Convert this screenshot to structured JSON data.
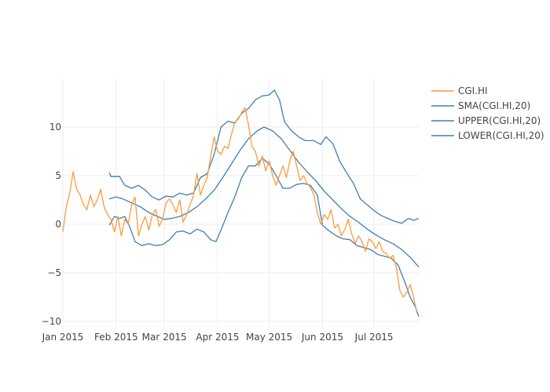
{
  "colors": {
    "orange": "#ff9a3d",
    "blue": "#3f7fb5",
    "grid": "#eceef2",
    "text": "#444444"
  },
  "chart_data": {
    "type": "line",
    "title": "",
    "xlabel": "",
    "ylabel": "",
    "x_range": [
      "2015-01-01",
      "2015-07-27"
    ],
    "ylim": [
      -10.5,
      15
    ],
    "grid": true,
    "legend_position": "top-right",
    "x_ticks": [
      {
        "date": "2015-01-01",
        "label": "Jan 2015"
      },
      {
        "date": "2015-02-01",
        "label": "Feb 2015"
      },
      {
        "date": "2015-03-01",
        "label": "Mar 2015"
      },
      {
        "date": "2015-04-01",
        "label": "Apr 2015"
      },
      {
        "date": "2015-05-01",
        "label": "May 2015"
      },
      {
        "date": "2015-06-01",
        "label": "Jun 2015"
      },
      {
        "date": "2015-07-01",
        "label": "Jul 2015"
      }
    ],
    "y_ticks": [
      {
        "value": 10,
        "label": "10"
      },
      {
        "value": 5,
        "label": "5"
      },
      {
        "value": 0,
        "label": "0"
      },
      {
        "value": -5,
        "label": "−5"
      },
      {
        "value": -10,
        "label": "−10"
      }
    ],
    "series": [
      {
        "name": "CGI.HI",
        "color": "#ff9a3d",
        "points": [
          [
            "2015-01-01",
            -0.8
          ],
          [
            "2015-01-03",
            1.8
          ],
          [
            "2015-01-05",
            3.2
          ],
          [
            "2015-01-07",
            5.4
          ],
          [
            "2015-01-09",
            3.6
          ],
          [
            "2015-01-11",
            3.0
          ],
          [
            "2015-01-13",
            2.0
          ],
          [
            "2015-01-15",
            1.5
          ],
          [
            "2015-01-17",
            3.0
          ],
          [
            "2015-01-19",
            1.8
          ],
          [
            "2015-01-21",
            2.5
          ],
          [
            "2015-01-23",
            3.6
          ],
          [
            "2015-01-25",
            1.8
          ],
          [
            "2015-01-27",
            1.0
          ],
          [
            "2015-01-29",
            0.5
          ],
          [
            "2015-01-31",
            -0.8
          ],
          [
            "2015-02-02",
            0.8
          ],
          [
            "2015-02-04",
            -1.2
          ],
          [
            "2015-02-06",
            0.5
          ],
          [
            "2015-02-08",
            0.0
          ],
          [
            "2015-02-10",
            2.0
          ],
          [
            "2015-02-12",
            2.8
          ],
          [
            "2015-02-14",
            -1.2
          ],
          [
            "2015-02-16",
            0.0
          ],
          [
            "2015-02-18",
            0.8
          ],
          [
            "2015-02-20",
            -0.6
          ],
          [
            "2015-02-22",
            1.0
          ],
          [
            "2015-02-24",
            1.5
          ],
          [
            "2015-02-26",
            -0.2
          ],
          [
            "2015-02-28",
            0.5
          ],
          [
            "2015-03-02",
            2.2
          ],
          [
            "2015-03-04",
            2.6
          ],
          [
            "2015-03-06",
            2.0
          ],
          [
            "2015-03-08",
            1.2
          ],
          [
            "2015-03-10",
            2.5
          ],
          [
            "2015-03-12",
            0.2
          ],
          [
            "2015-03-14",
            1.0
          ],
          [
            "2015-03-16",
            2.0
          ],
          [
            "2015-03-18",
            3.0
          ],
          [
            "2015-03-20",
            5.2
          ],
          [
            "2015-03-22",
            3.0
          ],
          [
            "2015-03-24",
            4.0
          ],
          [
            "2015-03-26",
            4.8
          ],
          [
            "2015-03-28",
            7.0
          ],
          [
            "2015-03-30",
            9.0
          ],
          [
            "2015-04-01",
            7.5
          ],
          [
            "2015-04-03",
            7.2
          ],
          [
            "2015-04-05",
            8.0
          ],
          [
            "2015-04-07",
            7.8
          ],
          [
            "2015-04-09",
            9.2
          ],
          [
            "2015-04-11",
            10.5
          ],
          [
            "2015-04-13",
            10.8
          ],
          [
            "2015-04-15",
            11.5
          ],
          [
            "2015-04-17",
            12.0
          ],
          [
            "2015-04-19",
            10.2
          ],
          [
            "2015-04-21",
            8.0
          ],
          [
            "2015-04-23",
            7.5
          ],
          [
            "2015-04-25",
            6.0
          ],
          [
            "2015-04-27",
            7.0
          ],
          [
            "2015-04-29",
            5.5
          ],
          [
            "2015-05-01",
            6.5
          ],
          [
            "2015-05-03",
            5.0
          ],
          [
            "2015-05-05",
            4.0
          ],
          [
            "2015-05-07",
            5.0
          ],
          [
            "2015-05-09",
            6.0
          ],
          [
            "2015-05-11",
            4.8
          ],
          [
            "2015-05-13",
            6.5
          ],
          [
            "2015-05-15",
            7.5
          ],
          [
            "2015-05-17",
            6.0
          ],
          [
            "2015-05-19",
            4.5
          ],
          [
            "2015-05-21",
            5.0
          ],
          [
            "2015-05-23",
            4.2
          ],
          [
            "2015-05-25",
            3.8
          ],
          [
            "2015-05-27",
            3.0
          ],
          [
            "2015-05-29",
            1.2
          ],
          [
            "2015-05-31",
            0.0
          ],
          [
            "2015-06-02",
            1.0
          ],
          [
            "2015-06-04",
            0.5
          ],
          [
            "2015-06-06",
            1.5
          ],
          [
            "2015-06-08",
            -0.4
          ],
          [
            "2015-06-10",
            0.0
          ],
          [
            "2015-06-12",
            -1.2
          ],
          [
            "2015-06-14",
            -0.5
          ],
          [
            "2015-06-16",
            0.5
          ],
          [
            "2015-06-18",
            -1.0
          ],
          [
            "2015-06-20",
            -2.0
          ],
          [
            "2015-06-22",
            -1.2
          ],
          [
            "2015-06-24",
            -1.8
          ],
          [
            "2015-06-26",
            -2.8
          ],
          [
            "2015-06-28",
            -1.5
          ],
          [
            "2015-06-30",
            -1.8
          ],
          [
            "2015-07-02",
            -2.5
          ],
          [
            "2015-07-04",
            -1.8
          ],
          [
            "2015-07-06",
            -2.8
          ],
          [
            "2015-07-08",
            -3.0
          ],
          [
            "2015-07-10",
            -3.5
          ],
          [
            "2015-07-12",
            -3.2
          ],
          [
            "2015-07-14",
            -4.5
          ],
          [
            "2015-07-16",
            -6.8
          ],
          [
            "2015-07-18",
            -7.5
          ],
          [
            "2015-07-20",
            -7.0
          ],
          [
            "2015-07-22",
            -6.2
          ],
          [
            "2015-07-24",
            -7.5
          ],
          [
            "2015-07-26",
            -9.2
          ]
        ]
      },
      {
        "name": "SMA(CGI.HI,20)",
        "color": "#3f7fb5",
        "points": [
          [
            "2015-01-28",
            2.6
          ],
          [
            "2015-02-01",
            2.8
          ],
          [
            "2015-02-05",
            2.6
          ],
          [
            "2015-02-10",
            2.2
          ],
          [
            "2015-02-15",
            1.8
          ],
          [
            "2015-02-20",
            1.2
          ],
          [
            "2015-02-25",
            0.8
          ],
          [
            "2015-03-01",
            0.5
          ],
          [
            "2015-03-05",
            0.6
          ],
          [
            "2015-03-10",
            0.8
          ],
          [
            "2015-03-15",
            1.2
          ],
          [
            "2015-03-20",
            1.8
          ],
          [
            "2015-03-25",
            2.6
          ],
          [
            "2015-03-30",
            3.5
          ],
          [
            "2015-04-04",
            4.8
          ],
          [
            "2015-04-09",
            6.2
          ],
          [
            "2015-04-14",
            7.6
          ],
          [
            "2015-04-19",
            8.8
          ],
          [
            "2015-04-24",
            9.6
          ],
          [
            "2015-04-28",
            10.0
          ],
          [
            "2015-05-03",
            9.6
          ],
          [
            "2015-05-08",
            8.8
          ],
          [
            "2015-05-13",
            7.6
          ],
          [
            "2015-05-18",
            6.4
          ],
          [
            "2015-05-23",
            5.4
          ],
          [
            "2015-05-28",
            4.5
          ],
          [
            "2015-06-02",
            3.4
          ],
          [
            "2015-06-07",
            2.5
          ],
          [
            "2015-06-12",
            1.6
          ],
          [
            "2015-06-17",
            0.8
          ],
          [
            "2015-06-22",
            0.2
          ],
          [
            "2015-06-27",
            -0.5
          ],
          [
            "2015-07-02",
            -1.1
          ],
          [
            "2015-07-07",
            -1.6
          ],
          [
            "2015-07-12",
            -2.0
          ],
          [
            "2015-07-17",
            -2.6
          ],
          [
            "2015-07-22",
            -3.4
          ],
          [
            "2015-07-27",
            -4.4
          ]
        ]
      },
      {
        "name": "UPPER(CGI.HI,20)",
        "color": "#3f7fb5",
        "points": [
          [
            "2015-01-28",
            5.3
          ],
          [
            "2015-01-29",
            4.9
          ],
          [
            "2015-02-03",
            4.9
          ],
          [
            "2015-02-06",
            4.0
          ],
          [
            "2015-02-10",
            3.7
          ],
          [
            "2015-02-14",
            4.0
          ],
          [
            "2015-02-18",
            3.5
          ],
          [
            "2015-02-22",
            2.8
          ],
          [
            "2015-02-26",
            2.5
          ],
          [
            "2015-03-02",
            2.9
          ],
          [
            "2015-03-06",
            2.8
          ],
          [
            "2015-03-10",
            3.2
          ],
          [
            "2015-03-14",
            3.0
          ],
          [
            "2015-03-18",
            3.2
          ],
          [
            "2015-03-22",
            4.8
          ],
          [
            "2015-03-26",
            5.2
          ],
          [
            "2015-03-30",
            7.2
          ],
          [
            "2015-04-03",
            10.0
          ],
          [
            "2015-04-07",
            10.6
          ],
          [
            "2015-04-11",
            10.4
          ],
          [
            "2015-04-15",
            11.4
          ],
          [
            "2015-04-19",
            11.9
          ],
          [
            "2015-04-23",
            12.8
          ],
          [
            "2015-04-27",
            13.2
          ],
          [
            "2015-05-01",
            13.3
          ],
          [
            "2015-05-04",
            13.8
          ],
          [
            "2015-05-07",
            12.8
          ],
          [
            "2015-05-10",
            10.5
          ],
          [
            "2015-05-14",
            9.6
          ],
          [
            "2015-05-18",
            9.0
          ],
          [
            "2015-05-22",
            8.6
          ],
          [
            "2015-05-27",
            8.6
          ],
          [
            "2015-05-31",
            8.2
          ],
          [
            "2015-06-03",
            9.0
          ],
          [
            "2015-06-07",
            8.3
          ],
          [
            "2015-06-11",
            6.5
          ],
          [
            "2015-06-15",
            5.3
          ],
          [
            "2015-06-19",
            4.2
          ],
          [
            "2015-06-23",
            2.6
          ],
          [
            "2015-06-27",
            2.0
          ],
          [
            "2015-07-01",
            1.4
          ],
          [
            "2015-07-05",
            0.9
          ],
          [
            "2015-07-09",
            0.6
          ],
          [
            "2015-07-13",
            0.3
          ],
          [
            "2015-07-17",
            0.1
          ],
          [
            "2015-07-21",
            0.6
          ],
          [
            "2015-07-24",
            0.4
          ],
          [
            "2015-07-27",
            0.6
          ]
        ]
      },
      {
        "name": "LOWER(CGI.HI,20)",
        "color": "#3f7fb5",
        "points": [
          [
            "2015-01-28",
            -0.1
          ],
          [
            "2015-01-31",
            0.8
          ],
          [
            "2015-02-03",
            0.6
          ],
          [
            "2015-02-06",
            0.8
          ],
          [
            "2015-02-09",
            -0.3
          ],
          [
            "2015-02-12",
            -1.8
          ],
          [
            "2015-02-16",
            -2.2
          ],
          [
            "2015-02-20",
            -2.0
          ],
          [
            "2015-02-24",
            -2.2
          ],
          [
            "2015-02-28",
            -2.1
          ],
          [
            "2015-03-04",
            -1.6
          ],
          [
            "2015-03-08",
            -0.8
          ],
          [
            "2015-03-12",
            -0.7
          ],
          [
            "2015-03-16",
            -1.0
          ],
          [
            "2015-03-20",
            -0.5
          ],
          [
            "2015-03-24",
            -0.8
          ],
          [
            "2015-03-28",
            -1.6
          ],
          [
            "2015-03-31",
            -1.8
          ],
          [
            "2015-04-03",
            -0.6
          ],
          [
            "2015-04-07",
            1.2
          ],
          [
            "2015-04-11",
            2.8
          ],
          [
            "2015-04-15",
            4.8
          ],
          [
            "2015-04-19",
            6.0
          ],
          [
            "2015-04-23",
            6.0
          ],
          [
            "2015-04-27",
            6.8
          ],
          [
            "2015-05-01",
            6.2
          ],
          [
            "2015-05-05",
            5.0
          ],
          [
            "2015-05-09",
            3.7
          ],
          [
            "2015-05-13",
            3.7
          ],
          [
            "2015-05-17",
            4.1
          ],
          [
            "2015-05-21",
            4.2
          ],
          [
            "2015-05-25",
            4.0
          ],
          [
            "2015-05-29",
            3.0
          ],
          [
            "2015-06-01",
            -0.1
          ],
          [
            "2015-06-05",
            -0.7
          ],
          [
            "2015-06-09",
            -1.2
          ],
          [
            "2015-06-13",
            -1.5
          ],
          [
            "2015-06-17",
            -1.6
          ],
          [
            "2015-06-21",
            -2.2
          ],
          [
            "2015-06-25",
            -2.4
          ],
          [
            "2015-06-29",
            -2.6
          ],
          [
            "2015-07-03",
            -3.1
          ],
          [
            "2015-07-07",
            -3.3
          ],
          [
            "2015-07-11",
            -3.5
          ],
          [
            "2015-07-15",
            -4.2
          ],
          [
            "2015-07-19",
            -6.0
          ],
          [
            "2015-07-22",
            -7.5
          ],
          [
            "2015-07-25",
            -8.5
          ],
          [
            "2015-07-27",
            -9.5
          ]
        ]
      }
    ]
  }
}
